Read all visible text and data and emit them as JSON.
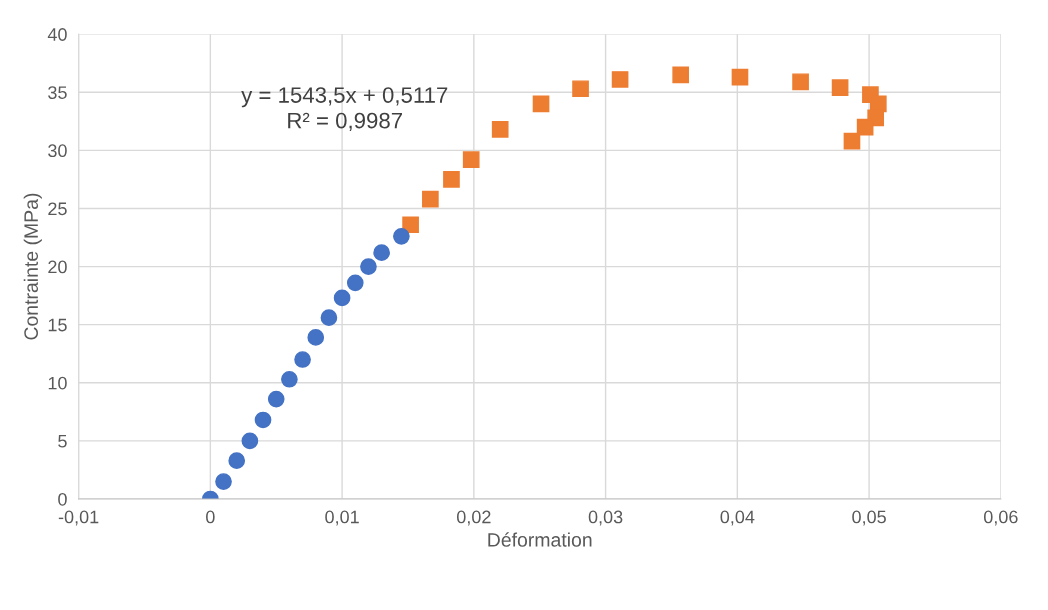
{
  "chart_data": {
    "type": "scatter",
    "xlabel": "Déformation",
    "ylabel": "Contrainte (MPa)",
    "xlim": [
      -0.01,
      0.06
    ],
    "xticks": [
      {
        "value": -0.01,
        "label": "-0,01"
      },
      0,
      {
        "value": 0.01,
        "label": "0,01"
      },
      {
        "value": 0.02,
        "label": "0,02"
      },
      {
        "value": 0.03,
        "label": "0,03"
      },
      {
        "value": 0.04,
        "label": "0,04"
      },
      {
        "value": 0.05,
        "label": "0,05"
      },
      {
        "value": 0.06,
        "label": "0,06"
      }
    ],
    "ylim": [
      0,
      40
    ],
    "yticks": [
      0,
      5,
      10,
      15,
      20,
      25,
      30,
      35,
      40
    ],
    "grid": true,
    "annotations": [
      "y = 1543,5x + 0,5117\nR² = 0,9987"
    ],
    "series": [
      {
        "color": "#ed7d31",
        "marker": "square",
        "x": [
          0.0152,
          0.0167,
          0.0183,
          0.0198,
          0.022,
          0.0251,
          0.0281,
          0.0311,
          0.0357,
          0.0402,
          0.0448,
          0.0478,
          0.0501,
          0.0507,
          0.0505,
          0.0497,
          0.0487
        ],
        "values": [
          23.6,
          25.8,
          27.5,
          29.2,
          31.8,
          34.0,
          35.3,
          36.1,
          36.5,
          36.3,
          35.9,
          35.4,
          34.8,
          34.0,
          32.8,
          32.0,
          30.8
        ]
      },
      {
        "color": "#4472c4",
        "marker": "circle",
        "x": [
          0,
          0.001,
          0.002,
          0.003,
          0.004,
          0.005,
          0.006,
          0.007,
          0.008,
          0.009,
          0.01,
          0.011,
          0.012,
          0.013,
          0.0145
        ],
        "values": [
          0,
          1.5,
          3.3,
          5,
          6.8,
          8.6,
          10.3,
          12,
          13.9,
          15.6,
          17.3,
          18.6,
          20,
          21.2,
          22.6
        ]
      }
    ]
  }
}
